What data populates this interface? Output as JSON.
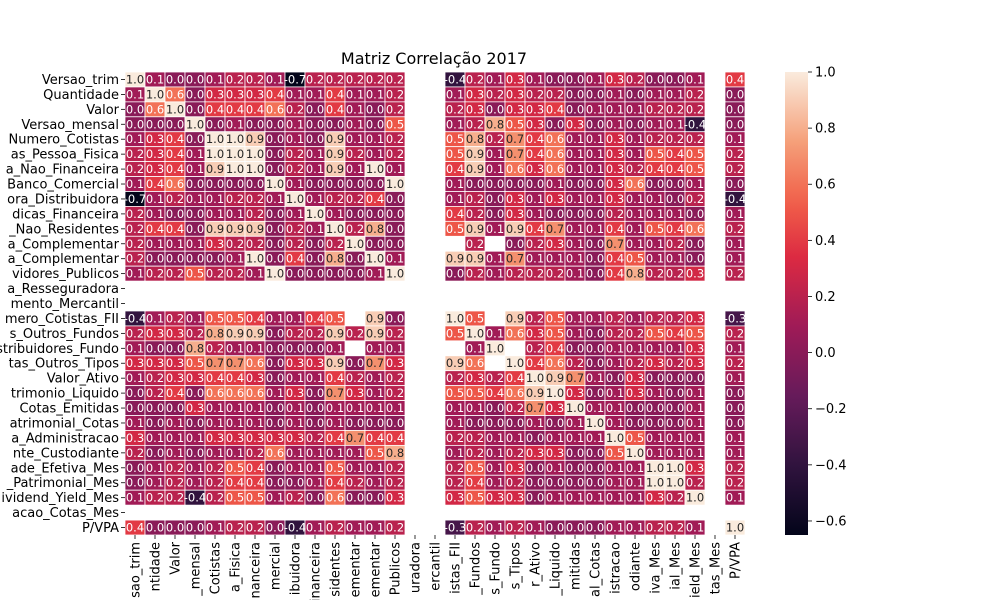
{
  "chart_data": {
    "type": "heatmap",
    "title": "Matriz Correlação 2017",
    "xlabel": "",
    "ylabel": "",
    "row_labels": [
      "Versao_trim",
      "Quantidade",
      "Valor",
      "Versao_mensal",
      "Numero_Cotistas",
      "as_Pessoa_Fisica",
      "a_Nao_Financeira",
      "Banco_Comercial",
      "ora_Distribuidora",
      "dicas_Financeira",
      "_Nao_Residentes",
      "a_Complementar",
      "a_Complementar",
      "vidores_Publicos",
      "a_Resseguradora",
      "mento_Mercantil",
      "mero_Cotistas_FII",
      "s_Outros_Fundos",
      "stribuidores_Fundo",
      "tas_Outros_Tipos",
      "Valor_Ativo",
      "trimonio_Liquido",
      "Cotas_Emitidas",
      "atrimonial_Cotas",
      "a_Administracao",
      "nte_Custodiante",
      "ade_Efetiva_Mes",
      "_Patrimonial_Mes",
      "ividend_Yield_Mes",
      "acao_Cotas_Mes",
      "P/VPA"
    ],
    "col_labels": [
      "sao_trim",
      "ntidade",
      "Valor",
      "_mensal",
      "Cotistas",
      "a_Fisica",
      "nanceira",
      "mercial",
      "ibuidora",
      "inanceira",
      "sidentes",
      "ementar",
      "ementar",
      "Publicos",
      "uradora",
      "ercantil",
      "istas_FII",
      "_Fundos",
      "s_Fundo",
      "s_Tipos",
      "r_Ativo",
      "_Liquido",
      "mitidas",
      "al_Cotas",
      "istracao",
      "odiante",
      "iva_Mes",
      "ial_Mes",
      "ield_Mes",
      "tas_Mes",
      "P/VPA"
    ],
    "values": [
      [
        "1.0",
        "0.1",
        "0.0",
        "0.0",
        "0.1",
        "0.2",
        "0.2",
        "0.1",
        "-0.7",
        "0.2",
        "0.2",
        "0.2",
        "0.2",
        "0.2",
        "",
        "",
        "-0.4",
        "0.2",
        "0.1",
        "0.3",
        "0.1",
        "0.0",
        "0.0",
        "0.1",
        "0.3",
        "0.2",
        "0.0",
        "0.0",
        "0.1",
        "",
        "0.4"
      ],
      [
        "0.1",
        "1.0",
        "0.6",
        "0.0",
        "0.3",
        "0.3",
        "0.3",
        "0.4",
        "0.1",
        "0.1",
        "0.4",
        "0.1",
        "0.1",
        "0.2",
        "",
        "",
        "0.1",
        "0.3",
        "0.2",
        "0.3",
        "0.2",
        "0.2",
        "0.0",
        "0.0",
        "0.1",
        "0.0",
        "0.1",
        "0.1",
        "0.2",
        "",
        "0.0"
      ],
      [
        "0.0",
        "0.6",
        "1.0",
        "0.0",
        "0.4",
        "0.4",
        "0.4",
        "0.6",
        "0.2",
        "0.0",
        "0.4",
        "0.1",
        "0.0",
        "0.2",
        "",
        "",
        "0.2",
        "0.3",
        "0.0",
        "0.3",
        "0.3",
        "0.4",
        "0.0",
        "0.1",
        "0.1",
        "0.1",
        "0.2",
        "0.2",
        "0.2",
        "",
        "0.0"
      ],
      [
        "0.0",
        "0.0",
        "0.0",
        "1.0",
        "0.0",
        "0.1",
        "0.0",
        "0.0",
        "0.1",
        "0.0",
        "0.0",
        "0.1",
        "0.0",
        "0.5",
        "",
        "",
        "0.1",
        "0.2",
        "0.8",
        "0.5",
        "0.3",
        "0.0",
        "0.3",
        "0.0",
        "0.1",
        "0.0",
        "0.1",
        "0.1",
        "-0.4",
        "",
        "0.0"
      ],
      [
        "0.1",
        "0.3",
        "0.4",
        "0.0",
        "1.0",
        "1.0",
        "0.9",
        "0.0",
        "0.1",
        "0.0",
        "0.9",
        "0.1",
        "0.1",
        "0.2",
        "",
        "",
        "0.5",
        "0.8",
        "0.2",
        "0.7",
        "0.4",
        "0.6",
        "0.1",
        "0.1",
        "0.3",
        "0.1",
        "0.2",
        "0.2",
        "0.2",
        "",
        "0.1"
      ],
      [
        "0.2",
        "0.3",
        "0.4",
        "0.1",
        "1.0",
        "1.0",
        "1.0",
        "0.0",
        "0.2",
        "0.1",
        "0.9",
        "0.2",
        "0.1",
        "0.2",
        "",
        "",
        "0.5",
        "0.9",
        "0.1",
        "0.7",
        "0.4",
        "0.6",
        "0.1",
        "0.1",
        "0.3",
        "0.1",
        "0.5",
        "0.4",
        "0.5",
        "",
        "0.2"
      ],
      [
        "0.2",
        "0.3",
        "0.4",
        "0.1",
        "0.9",
        "1.0",
        "1.0",
        "0.0",
        "0.2",
        "0.1",
        "0.9",
        "0.1",
        "1.0",
        "0.1",
        "",
        "",
        "0.4",
        "0.9",
        "0.1",
        "0.6",
        "0.3",
        "0.6",
        "0.1",
        "0.1",
        "0.3",
        "0.2",
        "0.4",
        "0.4",
        "0.5",
        "",
        "0.2"
      ],
      [
        "0.1",
        "0.4",
        "0.6",
        "0.0",
        "0.0",
        "0.0",
        "0.0",
        "1.0",
        "0.1",
        "0.0",
        "0.0",
        "0.0",
        "0.0",
        "1.0",
        "",
        "",
        "0.1",
        "0.0",
        "0.0",
        "0.0",
        "0.0",
        "0.1",
        "0.0",
        "0.0",
        "0.3",
        "0.6",
        "0.0",
        "0.0",
        "0.1",
        "",
        "0.0"
      ],
      [
        "-0.7",
        "0.1",
        "0.2",
        "0.1",
        "0.1",
        "0.2",
        "0.2",
        "0.1",
        "1.0",
        "0.1",
        "0.2",
        "0.2",
        "0.4",
        "0.0",
        "",
        "",
        "0.1",
        "0.2",
        "0.0",
        "0.3",
        "0.1",
        "0.3",
        "0.1",
        "0.1",
        "0.3",
        "0.1",
        "0.1",
        "0.0",
        "0.2",
        "",
        "-0.4"
      ],
      [
        "0.2",
        "0.1",
        "0.0",
        "0.0",
        "0.1",
        "0.1",
        "0.2",
        "0.0",
        "0.1",
        "1.0",
        "0.1",
        "0.0",
        "0.0",
        "0.0",
        "",
        "",
        "0.4",
        "0.2",
        "0.0",
        "0.3",
        "0.1",
        "0.0",
        "0.0",
        "0.0",
        "0.2",
        "0.1",
        "0.1",
        "0.1",
        "0.0",
        "",
        "0.1"
      ],
      [
        "0.2",
        "0.4",
        "0.4",
        "0.0",
        "0.9",
        "0.9",
        "0.9",
        "0.0",
        "0.2",
        "0.1",
        "1.0",
        "0.2",
        "0.8",
        "0.0",
        "",
        "",
        "0.5",
        "0.9",
        "0.1",
        "0.9",
        "0.4",
        "0.7",
        "0.1",
        "0.1",
        "0.4",
        "0.1",
        "0.5",
        "0.4",
        "0.6",
        "",
        "0.2"
      ],
      [
        "0.2",
        "0.1",
        "0.1",
        "0.1",
        "0.3",
        "0.2",
        "0.2",
        "0.0",
        "0.2",
        "0.0",
        "0.2",
        "1.0",
        "0.0",
        "0.0",
        "",
        "",
        "",
        "0.2",
        "",
        "0.0",
        "0.2",
        "0.3",
        "0.1",
        "0.0",
        "0.7",
        "0.1",
        "0.1",
        "0.2",
        "0.0",
        "",
        "0.1"
      ],
      [
        "0.2",
        "0.0",
        "0.0",
        "0.0",
        "0.0",
        "0.1",
        "1.0",
        "0.0",
        "0.4",
        "0.0",
        "0.8",
        "0.0",
        "1.0",
        "0.1",
        "",
        "",
        "0.9",
        "0.9",
        "0.1",
        "0.7",
        "0.1",
        "0.1",
        "0.1",
        "0.0",
        "0.4",
        "0.5",
        "0.1",
        "0.1",
        "0.0",
        "",
        "0.1"
      ],
      [
        "0.1",
        "0.2",
        "0.2",
        "0.5",
        "0.2",
        "0.2",
        "0.1",
        "1.0",
        "0.0",
        "0.0",
        "0.0",
        "0.0",
        "0.1",
        "1.0",
        "",
        "",
        "0.0",
        "0.2",
        "0.1",
        "0.2",
        "0.2",
        "0.2",
        "0.1",
        "0.0",
        "0.4",
        "0.8",
        "0.2",
        "0.2",
        "0.3",
        "",
        "0.2"
      ],
      [
        "",
        "",
        "",
        "",
        "",
        "",
        "",
        "",
        "",
        "",
        "",
        "",
        "",
        "",
        "",
        "",
        "",
        "",
        "",
        "",
        "",
        "",
        "",
        "",
        "",
        "",
        "",
        "",
        "",
        "",
        ""
      ],
      [
        "",
        "",
        "",
        "",
        "",
        "",
        "",
        "",
        "",
        "",
        "",
        "",
        "",
        "",
        "",
        "",
        "",
        "",
        "",
        "",
        "",
        "",
        "",
        "",
        "",
        "",
        "",
        "",
        "",
        "",
        ""
      ],
      [
        "-0.4",
        "0.1",
        "0.2",
        "0.1",
        "0.5",
        "0.5",
        "0.4",
        "0.1",
        "0.1",
        "0.4",
        "0.5",
        "",
        "0.9",
        "0.0",
        "",
        "",
        "1.0",
        "0.5",
        "",
        "0.9",
        "0.2",
        "0.5",
        "0.1",
        "0.1",
        "0.2",
        "0.1",
        "0.2",
        "0.2",
        "0.3",
        "",
        "-0.3"
      ],
      [
        "0.2",
        "0.3",
        "0.3",
        "0.2",
        "0.8",
        "0.9",
        "0.9",
        "0.0",
        "0.2",
        "0.2",
        "0.9",
        "0.2",
        "0.9",
        "0.2",
        "",
        "",
        "0.5",
        "1.0",
        "0.1",
        "0.6",
        "0.3",
        "0.5",
        "0.1",
        "0.0",
        "0.2",
        "0.2",
        "0.5",
        "0.4",
        "0.5",
        "",
        "0.2"
      ],
      [
        "0.1",
        "0.0",
        "0.0",
        "0.8",
        "0.2",
        "0.1",
        "0.1",
        "0.0",
        "0.0",
        "0.0",
        "0.1",
        "",
        "0.1",
        "0.1",
        "",
        "",
        "",
        "0.1",
        "1.0",
        "",
        "0.2",
        "0.4",
        "0.0",
        "0.0",
        "0.1",
        "0.1",
        "0.1",
        "0.1",
        "0.3",
        "",
        "0.1"
      ],
      [
        "0.3",
        "0.3",
        "0.3",
        "0.5",
        "0.7",
        "0.7",
        "0.6",
        "0.0",
        "0.3",
        "0.3",
        "0.9",
        "0.0",
        "0.7",
        "0.3",
        "",
        "",
        "0.9",
        "0.6",
        "",
        "1.0",
        "0.4",
        "0.6",
        "0.2",
        "0.0",
        "0.1",
        "0.2",
        "0.3",
        "0.2",
        "0.3",
        "",
        "0.2"
      ],
      [
        "0.1",
        "0.2",
        "0.3",
        "0.3",
        "0.4",
        "0.4",
        "0.3",
        "0.0",
        "0.1",
        "0.1",
        "0.4",
        "0.2",
        "0.1",
        "0.2",
        "",
        "",
        "0.2",
        "0.3",
        "0.2",
        "0.4",
        "1.0",
        "0.9",
        "0.7",
        "0.1",
        "0.0",
        "0.3",
        "0.0",
        "0.0",
        "0.0",
        "",
        "0.1"
      ],
      [
        "0.0",
        "0.2",
        "0.4",
        "0.0",
        "0.6",
        "0.6",
        "0.6",
        "0.1",
        "0.3",
        "0.0",
        "0.7",
        "0.3",
        "0.1",
        "0.2",
        "",
        "",
        "0.5",
        "0.5",
        "0.4",
        "0.6",
        "0.9",
        "1.0",
        "0.3",
        "0.0",
        "0.1",
        "0.3",
        "0.1",
        "0.0",
        "0.1",
        "",
        "0.0"
      ],
      [
        "0.0",
        "0.0",
        "0.0",
        "0.3",
        "0.1",
        "0.1",
        "0.1",
        "0.0",
        "0.1",
        "0.0",
        "0.1",
        "0.1",
        "0.1",
        "0.1",
        "",
        "",
        "0.1",
        "0.1",
        "0.0",
        "0.2",
        "0.7",
        "0.3",
        "1.0",
        "0.1",
        "0.1",
        "0.0",
        "0.0",
        "0.0",
        "0.1",
        "",
        "0.0"
      ],
      [
        "0.1",
        "0.0",
        "0.1",
        "0.0",
        "0.1",
        "0.1",
        "0.1",
        "0.0",
        "0.1",
        "0.0",
        "0.1",
        "0.0",
        "0.0",
        "0.0",
        "",
        "",
        "0.1",
        "0.0",
        "0.0",
        "0.0",
        "0.1",
        "0.0",
        "0.1",
        "1.0",
        "0.1",
        "0.0",
        "0.0",
        "0.0",
        "0.1",
        "",
        "0.0"
      ],
      [
        "0.3",
        "0.1",
        "0.1",
        "0.1",
        "0.3",
        "0.3",
        "0.3",
        "0.3",
        "0.3",
        "0.2",
        "0.4",
        "0.7",
        "0.4",
        "0.4",
        "",
        "",
        "0.2",
        "0.2",
        "0.1",
        "0.1",
        "0.0",
        "0.1",
        "0.1",
        "0.1",
        "1.0",
        "0.5",
        "0.1",
        "0.1",
        "0.1",
        "",
        "0.1"
      ],
      [
        "0.2",
        "0.0",
        "0.1",
        "0.0",
        "0.1",
        "0.1",
        "0.2",
        "0.6",
        "0.1",
        "0.1",
        "0.1",
        "0.1",
        "0.5",
        "0.8",
        "",
        "",
        "0.1",
        "0.2",
        "0.1",
        "0.2",
        "0.3",
        "0.3",
        "0.0",
        "0.0",
        "0.5",
        "1.0",
        "0.1",
        "0.1",
        "0.1",
        "",
        "0.1"
      ],
      [
        "0.0",
        "0.1",
        "0.2",
        "0.1",
        "0.2",
        "0.5",
        "0.4",
        "0.0",
        "0.1",
        "0.1",
        "0.5",
        "0.1",
        "0.1",
        "0.2",
        "",
        "",
        "0.2",
        "0.5",
        "0.1",
        "0.3",
        "0.0",
        "0.1",
        "0.0",
        "0.0",
        "0.1",
        "0.1",
        "1.0",
        "1.0",
        "0.3",
        "",
        "0.2"
      ],
      [
        "0.0",
        "0.1",
        "0.2",
        "0.1",
        "0.2",
        "0.4",
        "0.4",
        "0.0",
        "0.0",
        "0.1",
        "0.4",
        "0.2",
        "0.1",
        "0.2",
        "",
        "",
        "0.2",
        "0.4",
        "0.1",
        "0.2",
        "0.0",
        "0.0",
        "0.0",
        "0.0",
        "0.1",
        "0.1",
        "1.0",
        "1.0",
        "0.2",
        "",
        "0.2"
      ],
      [
        "0.1",
        "0.2",
        "0.2",
        "-0.4",
        "0.2",
        "0.5",
        "0.5",
        "0.1",
        "0.2",
        "0.0",
        "0.6",
        "0.0",
        "0.0",
        "0.3",
        "",
        "",
        "0.3",
        "0.5",
        "0.3",
        "0.3",
        "0.0",
        "0.1",
        "0.1",
        "0.1",
        "0.1",
        "0.1",
        "0.3",
        "0.2",
        "1.0",
        "",
        "0.1"
      ],
      [
        "",
        "",
        "",
        "",
        "",
        "",
        "",
        "",
        "",
        "",
        "",
        "",
        "",
        "",
        "",
        "",
        "",
        "",
        "",
        "",
        "",
        "",
        "",
        "",
        "",
        "",
        "",
        "",
        "",
        "",
        ""
      ],
      [
        "0.4",
        "0.0",
        "0.0",
        "0.0",
        "0.1",
        "0.2",
        "0.2",
        "0.0",
        "-0.4",
        "0.1",
        "0.2",
        "0.1",
        "0.1",
        "0.2",
        "",
        "",
        "-0.3",
        "0.2",
        "0.1",
        "0.2",
        "0.1",
        "0.0",
        "0.0",
        "0.0",
        "0.1",
        "0.1",
        "0.2",
        "0.2",
        "0.1",
        "",
        "1.0"
      ]
    ],
    "vmin": -0.65,
    "vmax": 1.0,
    "colormap": "rocket",
    "colorbar_ticks": [
      "1.0",
      "0.8",
      "0.6",
      "0.4",
      "0.2",
      "0.0",
      "−0.2",
      "−0.4",
      "−0.6"
    ],
    "colorbar_tick_values": [
      1.0,
      0.8,
      0.6,
      0.4,
      0.2,
      0.0,
      -0.2,
      -0.4,
      -0.6
    ],
    "grid": true,
    "legend": "right colorbar"
  }
}
